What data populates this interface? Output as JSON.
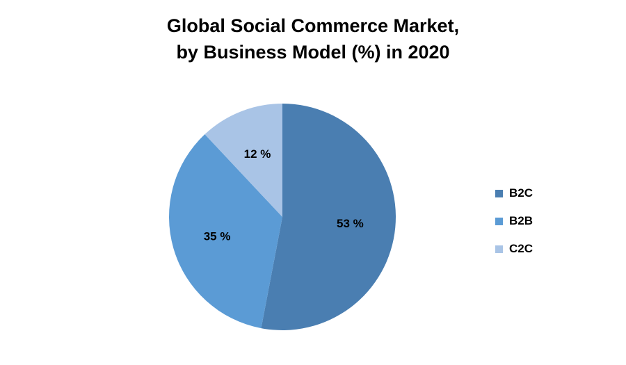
{
  "chart_data": {
    "type": "pie",
    "title": "Global Social Commerce Market,",
    "subtitle": "by Business Model (%) in 2020",
    "categories": [
      "B2C",
      "B2B",
      "C2C"
    ],
    "values": [
      53,
      35,
      12
    ],
    "data_labels": [
      "53 %",
      "35 %",
      "12 %"
    ],
    "colors": [
      "#4a7eb1",
      "#5b9bd5",
      "#a9c4e6"
    ],
    "start_angle": "top",
    "direction": "clockwise",
    "legend": "right"
  }
}
